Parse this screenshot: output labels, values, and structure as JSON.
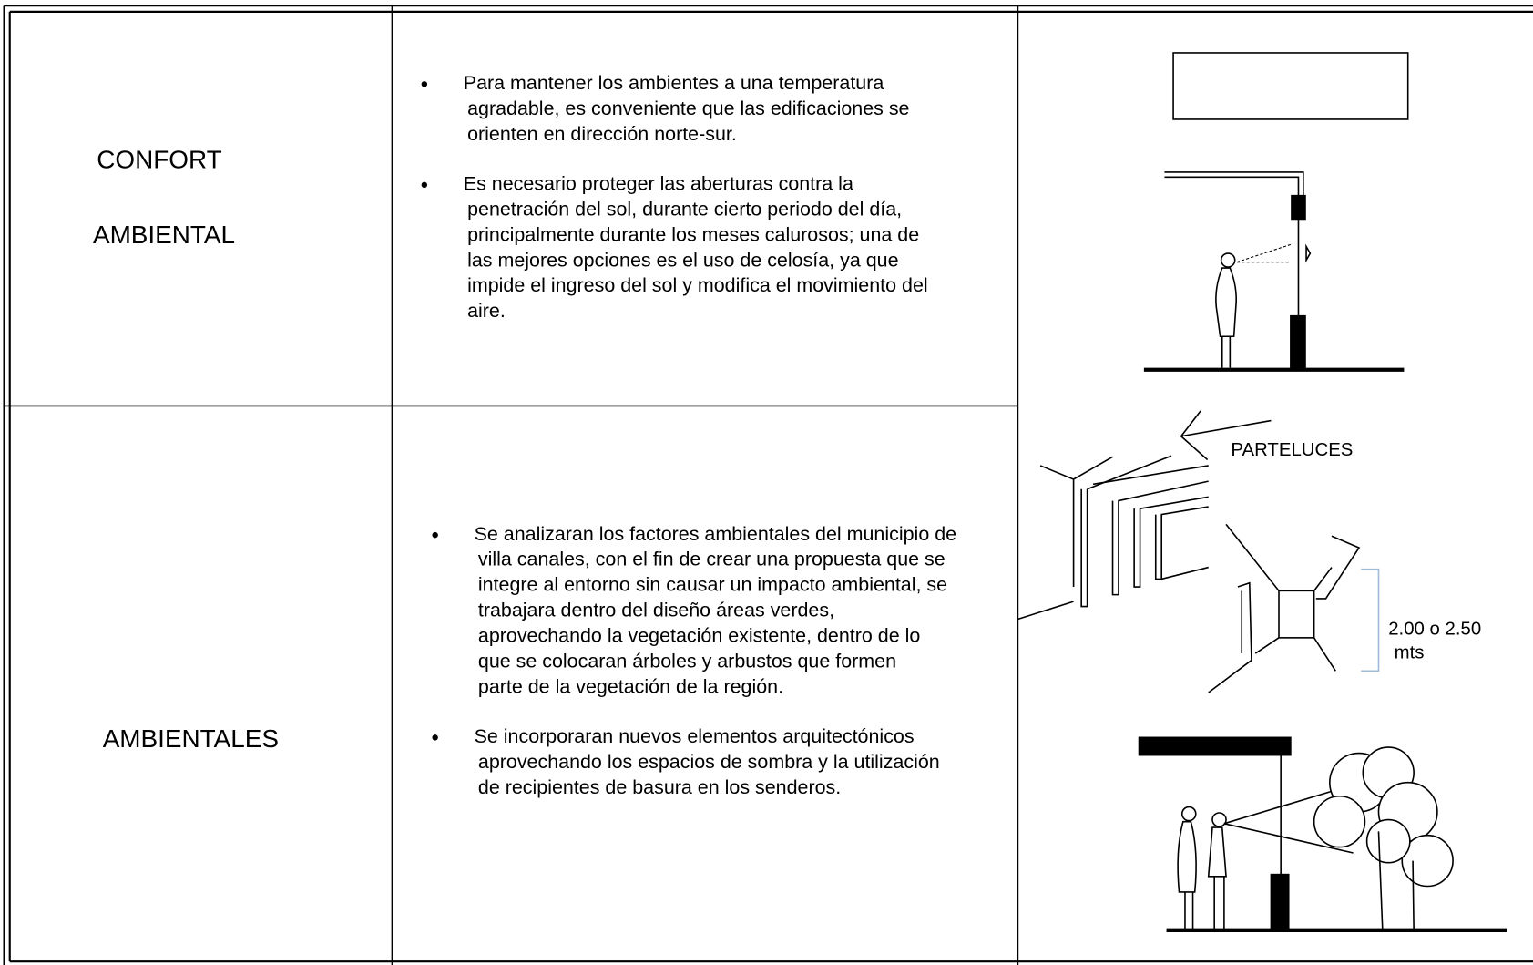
{
  "table": {
    "rows": [
      {
        "label": [
          "CONFORT",
          "AMBIENTAL"
        ],
        "bullets": [
          [
            "Para mantener los ambientes a una temperatura",
            "agradable, es conveniente que las edificaciones se",
            "orienten en dirección norte-sur."
          ],
          [
            "Es necesario proteger las aberturas contra la",
            "penetración del sol, durante cierto periodo del día,",
            "principalmente durante los meses calurosos; una de",
            "las mejores opciones es el uso de celosía, ya que",
            "impide el ingreso del sol y modifica el movimiento del",
            "aire."
          ]
        ]
      },
      {
        "label": [
          "AMBIENTALES"
        ],
        "bullets": [
          [
            "Se analizaran los factores ambientales del municipio de",
            "villa canales, con el fin de crear una propuesta que se",
            "integre al entorno sin causar un impacto ambiental, se",
            "trabajara dentro del diseño áreas verdes,",
            "aprovechando la vegetación existente, dentro de lo",
            "que se colocaran árboles y arbustos que formen",
            "parte de la vegetación de la región."
          ],
          [
            "Se incorporaran nuevos elementos arquitectónicos",
            "aprovechando los espacios de sombra y la utilización",
            "de recipientes de basura en los senderos."
          ]
        ]
      }
    ]
  },
  "figures": {
    "labels": [
      "PARTELUCES",
      "2.00 o 2.50",
      "mts"
    ]
  }
}
